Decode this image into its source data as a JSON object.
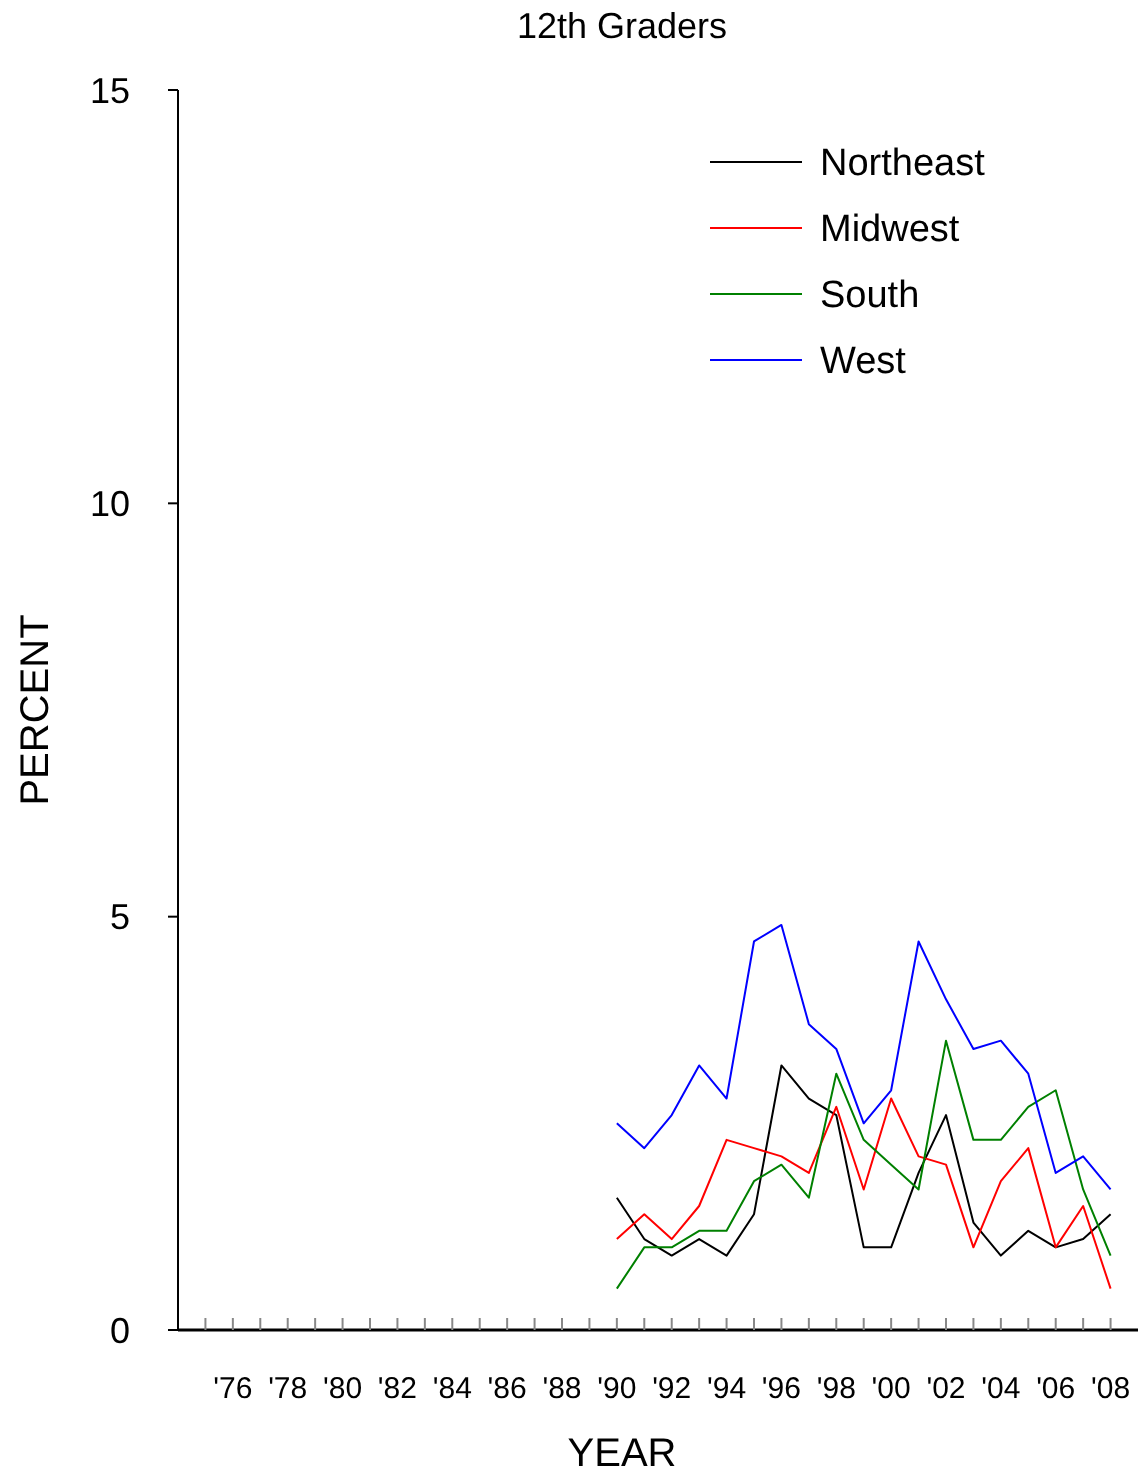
{
  "chart_data": {
    "type": "line",
    "title": "12th Graders",
    "xlabel": "YEAR",
    "ylabel": "PERCENT",
    "x": [
      1990,
      1991,
      1992,
      1993,
      1994,
      1995,
      1996,
      1997,
      1998,
      1999,
      2000,
      2001,
      2002,
      2003,
      2004,
      2005,
      2006,
      2007,
      2008
    ],
    "series": [
      {
        "name": "Northeast",
        "color": "#000000",
        "values": [
          1.6,
          1.1,
          0.9,
          1.1,
          0.9,
          1.4,
          3.2,
          2.8,
          2.6,
          1.0,
          1.0,
          1.9,
          2.6,
          1.3,
          0.9,
          1.2,
          1.0,
          1.1,
          1.4
        ]
      },
      {
        "name": "Midwest",
        "color": "#ff0000",
        "values": [
          1.1,
          1.4,
          1.1,
          1.5,
          2.3,
          2.2,
          2.1,
          1.9,
          2.7,
          1.7,
          2.8,
          2.1,
          2.0,
          1.0,
          1.8,
          2.2,
          1.0,
          1.5,
          0.5
        ]
      },
      {
        "name": "South",
        "color": "#008000",
        "values": [
          0.5,
          1.0,
          1.0,
          1.2,
          1.2,
          1.8,
          2.0,
          1.6,
          3.1,
          2.3,
          2.0,
          1.7,
          3.5,
          2.3,
          2.3,
          2.7,
          2.9,
          1.7,
          0.9
        ]
      },
      {
        "name": "West",
        "color": "#0000ff",
        "values": [
          2.5,
          2.2,
          2.6,
          3.2,
          2.8,
          4.7,
          4.9,
          3.7,
          3.4,
          2.5,
          2.9,
          4.7,
          4.0,
          3.4,
          3.5,
          3.1,
          1.9,
          2.1,
          1.7
        ]
      }
    ],
    "xlim": [
      1974,
      2009
    ],
    "xticks": [
      {
        "value": 1975,
        "label": null
      },
      {
        "value": 1976,
        "label": "'76"
      },
      {
        "value": 1977,
        "label": null
      },
      {
        "value": 1978,
        "label": "'78"
      },
      {
        "value": 1979,
        "label": null
      },
      {
        "value": 1980,
        "label": "'80"
      },
      {
        "value": 1981,
        "label": null
      },
      {
        "value": 1982,
        "label": "'82"
      },
      {
        "value": 1983,
        "label": null
      },
      {
        "value": 1984,
        "label": "'84"
      },
      {
        "value": 1985,
        "label": null
      },
      {
        "value": 1986,
        "label": "'86"
      },
      {
        "value": 1987,
        "label": null
      },
      {
        "value": 1988,
        "label": "'88"
      },
      {
        "value": 1989,
        "label": null
      },
      {
        "value": 1990,
        "label": "'90"
      },
      {
        "value": 1991,
        "label": null
      },
      {
        "value": 1992,
        "label": "'92"
      },
      {
        "value": 1993,
        "label": null
      },
      {
        "value": 1994,
        "label": "'94"
      },
      {
        "value": 1995,
        "label": null
      },
      {
        "value": 1996,
        "label": "'96"
      },
      {
        "value": 1997,
        "label": null
      },
      {
        "value": 1998,
        "label": "'98"
      },
      {
        "value": 1999,
        "label": null
      },
      {
        "value": 2000,
        "label": "'00"
      },
      {
        "value": 2001,
        "label": null
      },
      {
        "value": 2002,
        "label": "'02"
      },
      {
        "value": 2003,
        "label": null
      },
      {
        "value": 2004,
        "label": "'04"
      },
      {
        "value": 2005,
        "label": null
      },
      {
        "value": 2006,
        "label": "'06"
      },
      {
        "value": 2007,
        "label": null
      },
      {
        "value": 2008,
        "label": "'08"
      }
    ],
    "ylim": [
      0,
      15
    ],
    "yticks": [
      0,
      5,
      10,
      15
    ],
    "legend": "top right",
    "grid": false,
    "marker": "none",
    "line_style": "solid"
  }
}
